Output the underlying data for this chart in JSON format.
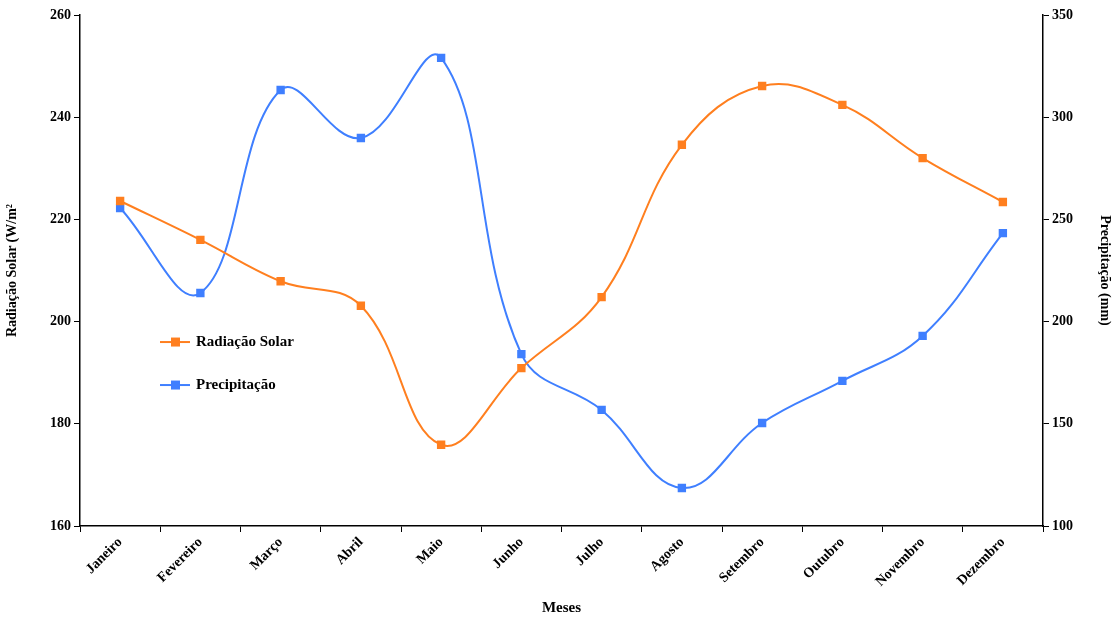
{
  "chart_data": {
    "type": "line",
    "xlabel": "Meses",
    "ylabel": "Radiação Solar (W/m²",
    "y2label": "Precipitação (mm)",
    "categories": [
      "Janeiro",
      "Fevereiro",
      "Março",
      "Abril",
      "Maio",
      "Junho",
      "Julho",
      "Agosto",
      "Setembro",
      "Outubro",
      "Novembro",
      "Dezembro"
    ],
    "series": [
      {
        "name": "Radiação Solar",
        "color": "#ff7f1f",
        "values": [
          223.6,
          216,
          207.9,
          203.1,
          175.9,
          190.9,
          204.8,
          234.6,
          246.1,
          242.4,
          232,
          223.4
        ]
      },
      {
        "name": "Precipitação",
        "color": "#3f7fff",
        "axis": "y2",
        "values": [
          255.6,
          214,
          313.3,
          289.8,
          329,
          184.1,
          156.8,
          118.6,
          150.4,
          171,
          193,
          243.3
        ]
      }
    ],
    "ylim": [
      160,
      260
    ],
    "yticks": [
      160,
      180,
      200,
      220,
      240,
      260
    ],
    "y2lim": [
      100,
      350
    ],
    "y2ticks": [
      100,
      150,
      200,
      250,
      300,
      350
    ],
    "grid": false,
    "legend": "left",
    "marker": "square",
    "line_style": "solid"
  }
}
